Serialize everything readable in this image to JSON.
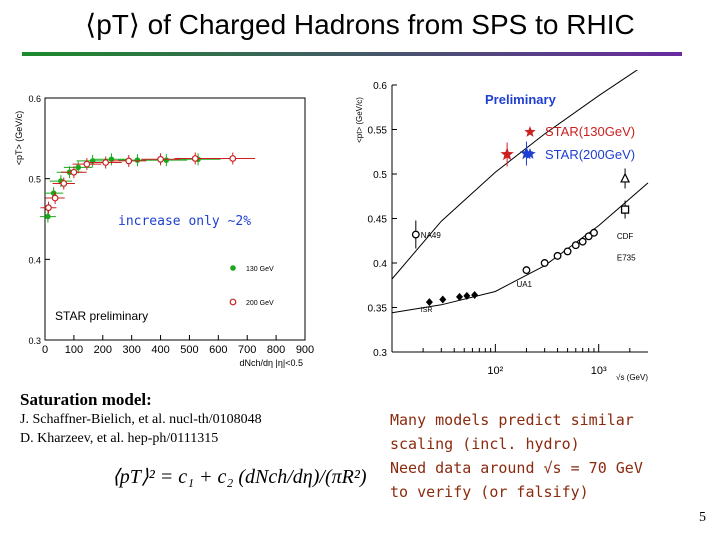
{
  "slide": {
    "title": "⟨pT⟩ of Charged Hadrons from SPS to RHIC",
    "page_number": "5",
    "saturation_heading": "Saturation model:",
    "ref1": "J. Schaffner-Bielich, et al. nucl-th/0108048",
    "ref2": "D. Kharzeev, et al. hep-ph/0111315",
    "formula": "⟨pT⟩² = c₁ + c₂ (dNch/dη)/(πR²)",
    "models_text": [
      "Many models predict similar",
      "scaling (incl. hydro)",
      "Need data around √s = 70 GeV",
      "to verify (or falsify)"
    ],
    "colors": {
      "green": "#1aa81a",
      "red": "#cc2020",
      "blue": "#1e3fd0",
      "title_rule_start": "#1c8a2b",
      "title_rule_end": "#6a2aa0"
    }
  },
  "chart_data": [
    {
      "type": "scatter",
      "title": "",
      "xlabel": "dNch/dη |η|<0.5",
      "ylabel": "<pT> (GeV/c)",
      "xlim": [
        0,
        900
      ],
      "ylim": [
        0.3,
        0.6
      ],
      "x_ticks": [
        0,
        100,
        200,
        300,
        400,
        500,
        600,
        700,
        800,
        900
      ],
      "y_ticks": [
        0.3,
        0.4,
        0.5,
        0.6
      ],
      "annotations": [
        "increase only ~2%",
        "STAR preliminary"
      ],
      "series": [
        {
          "name": "130 GeV",
          "color": "#1aa81a",
          "x": [
            10,
            30,
            55,
            85,
            115,
            165,
            230,
            320,
            420,
            530
          ],
          "y": [
            0.453,
            0.482,
            0.497,
            0.508,
            0.514,
            0.522,
            0.524,
            0.523,
            0.523,
            0.524
          ]
        },
        {
          "name": "200 GeV",
          "color": "#cc2020",
          "x": [
            12,
            35,
            65,
            100,
            145,
            210,
            290,
            400,
            520,
            650
          ],
          "y": [
            0.464,
            0.476,
            0.494,
            0.508,
            0.518,
            0.52,
            0.522,
            0.524,
            0.525,
            0.525
          ]
        }
      ]
    },
    {
      "type": "scatter",
      "title": "Preliminary",
      "xlabel": "√s (GeV)",
      "ylabel": "<pt> (GeV/c)",
      "xscale": "log",
      "xlim": [
        10,
        3000
      ],
      "ylim": [
        0.3,
        0.6
      ],
      "x_tick_labels": [
        "10²",
        "10³"
      ],
      "y_ticks": [
        0.3,
        0.35,
        0.4,
        0.45,
        0.5,
        0.55,
        0.6
      ],
      "legend": [
        "STAR(130GeV)",
        "STAR(200GeV)"
      ],
      "labels": [
        "NA49",
        "ISR",
        "UA1",
        "CDF",
        "E735"
      ],
      "series": [
        {
          "name": "STAR(130GeV)",
          "color": "#cc2020",
          "marker": "star",
          "x": [
            130
          ],
          "y": [
            0.522
          ]
        },
        {
          "name": "STAR(200GeV)",
          "color": "#1e3fd0",
          "marker": "star",
          "x": [
            200
          ],
          "y": [
            0.523
          ]
        },
        {
          "name": "NA49",
          "color": "#000000",
          "marker": "circle",
          "x": [
            17
          ],
          "y": [
            0.432
          ]
        },
        {
          "name": "ISR",
          "color": "#000000",
          "marker": "diamond",
          "x": [
            23,
            31,
            45,
            53,
            63
          ],
          "y": [
            0.356,
            0.359,
            0.362,
            0.363,
            0.364
          ]
        },
        {
          "name": "UA1",
          "color": "#000000",
          "marker": "circle",
          "x": [
            200,
            300,
            400,
            500,
            600,
            700,
            800,
            900
          ],
          "y": [
            0.392,
            0.4,
            0.408,
            0.413,
            0.42,
            0.424,
            0.43,
            0.434
          ]
        },
        {
          "name": "CDF",
          "color": "#000000",
          "marker": "square",
          "x": [
            1800
          ],
          "y": [
            0.46
          ]
        },
        {
          "name": "E735",
          "color": "#000000",
          "marker": "triangle",
          "x": [
            1800
          ],
          "y": [
            0.495
          ]
        }
      ],
      "fit_curves": [
        {
          "x": [
            10,
            30,
            100,
            300,
            1000,
            3000
          ],
          "y": [
            0.382,
            0.447,
            0.502,
            0.545,
            0.588,
            0.625
          ]
        },
        {
          "x": [
            10,
            30,
            100,
            300,
            1000,
            3000
          ],
          "y": [
            0.344,
            0.353,
            0.368,
            0.397,
            0.442,
            0.49
          ]
        }
      ]
    }
  ]
}
